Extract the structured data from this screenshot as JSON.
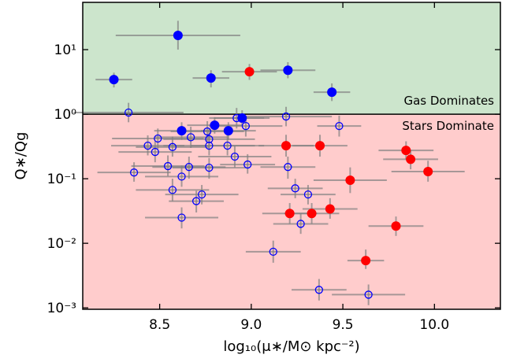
{
  "chart_data": {
    "type": "scatter",
    "xlabel": "log₁₀(μ∗/M⊙ kpc⁻²)",
    "ylabel": "Q∗/Qg",
    "xlim": [
      8.08,
      10.36
    ],
    "ylim": [
      0.00095,
      54
    ],
    "yscale": "log",
    "xticks": [
      8.5,
      {
        "value": 9,
        "label": "9.0"
      },
      9.5,
      {
        "value": 10,
        "label": "10.0"
      }
    ],
    "yticks": [
      {
        "value": 0.001,
        "label": "10⁻³"
      },
      {
        "value": 0.01,
        "label": "10⁻²"
      },
      {
        "value": 0.1,
        "label": "10⁻¹"
      },
      {
        "value": 1,
        "label": "10⁰"
      },
      {
        "value": 10,
        "label": "10¹"
      }
    ],
    "regions": [
      {
        "label": "Gas Dominates",
        "from": 1,
        "to": 54,
        "color": "#cce5cc"
      },
      {
        "label": "Stars Dominate",
        "from": 0.00095,
        "to": 1,
        "color": "#ffcccc"
      }
    ],
    "errorbar_color": "#808080",
    "series": [
      {
        "color": "#0000ff",
        "filled": true,
        "x": [
          8.25,
          8.6,
          8.78,
          9.2,
          9.44,
          8.62,
          8.8,
          8.875,
          8.95
        ],
        "values": [
          3.44,
          16.6,
          3.64,
          4.8,
          2.19,
          0.555,
          0.675,
          0.555,
          0.87
        ],
        "xerr": [
          0.1,
          0.34,
          0.1,
          0.15,
          0.1,
          0.15,
          0.15,
          0.15,
          0.15
        ],
        "ylow": [
          2.6,
          10,
          2.6,
          3.6,
          1.6,
          0.4,
          0.5,
          0.4,
          0.65
        ],
        "yhigh": [
          4.4,
          28,
          4.8,
          6.4,
          3,
          0.75,
          0.9,
          0.75,
          1.15
        ]
      },
      {
        "color": "#ff0000",
        "filled": true,
        "x": [
          8.99,
          9.19,
          9.375,
          9.845,
          9.87,
          9.965,
          9.54,
          9.21,
          9.33,
          9.43,
          9.79,
          9.625
        ],
        "values": [
          4.55,
          0.325,
          0.325,
          0.275,
          0.2,
          0.129,
          0.095,
          0.029,
          0.029,
          0.034,
          0.0185,
          0.0054
        ],
        "xerr": [
          0.15,
          0.15,
          0.15,
          0.15,
          0.15,
          0.2,
          0.2,
          0.15,
          0.15,
          0.15,
          0.15,
          0.1
        ],
        "ylow": [
          3.4,
          0.22,
          0.22,
          0.2,
          0.14,
          0.09,
          0.06,
          0.02,
          0.02,
          0.024,
          0.013,
          0.004
        ],
        "yhigh": [
          6,
          0.48,
          0.48,
          0.38,
          0.28,
          0.19,
          0.15,
          0.042,
          0.042,
          0.05,
          0.026,
          0.008
        ]
      },
      {
        "color": "#0000ff",
        "filled": false,
        "x": [
          8.33,
          9.48,
          9.19,
          8.97,
          8.92,
          8.76,
          8.77,
          8.67,
          8.49,
          8.435,
          8.475,
          8.57,
          8.77,
          8.87,
          8.91,
          8.98,
          9.2,
          8.545,
          8.66,
          8.77,
          8.36,
          8.62,
          8.57,
          9.24,
          9.31,
          8.73,
          8.7,
          8.62,
          9.27,
          9.12,
          9.37,
          9.64
        ],
        "values": [
          1.06,
          0.656,
          0.92,
          0.656,
          0.87,
          0.54,
          0.41,
          0.44,
          0.42,
          0.325,
          0.26,
          0.31,
          0.325,
          0.325,
          0.22,
          0.166,
          0.152,
          0.157,
          0.152,
          0.148,
          0.125,
          0.108,
          0.067,
          0.071,
          0.057,
          0.057,
          0.045,
          0.025,
          0.02,
          0.0074,
          0.0019,
          0.0016
        ],
        "xerr": [
          0.3,
          0.12,
          0.25,
          0.2,
          0.15,
          0.2,
          0.25,
          0.2,
          0.25,
          0.2,
          0.2,
          0.2,
          0.25,
          0.2,
          0.2,
          0.15,
          0.15,
          0.2,
          0.2,
          0.2,
          0.2,
          0.2,
          0.2,
          0.15,
          0.15,
          0.2,
          0.15,
          0.2,
          0.15,
          0.15,
          0.15,
          0.2
        ],
        "ylow": [
          0.75,
          0.45,
          0.65,
          0.45,
          0.6,
          0.38,
          0.29,
          0.3,
          0.29,
          0.23,
          0.18,
          0.22,
          0.23,
          0.23,
          0.15,
          0.12,
          0.1,
          0.11,
          0.1,
          0.1,
          0.09,
          0.075,
          0.045,
          0.05,
          0.04,
          0.04,
          0.03,
          0.017,
          0.014,
          0.005,
          0.0013,
          0.0011
        ],
        "yhigh": [
          1.5,
          0.95,
          1.3,
          0.95,
          1.25,
          0.78,
          0.6,
          0.64,
          0.6,
          0.47,
          0.38,
          0.45,
          0.47,
          0.47,
          0.32,
          0.24,
          0.22,
          0.23,
          0.22,
          0.21,
          0.18,
          0.16,
          0.1,
          0.1,
          0.08,
          0.08,
          0.065,
          0.036,
          0.029,
          0.011,
          0.0028,
          0.0023
        ]
      }
    ]
  }
}
